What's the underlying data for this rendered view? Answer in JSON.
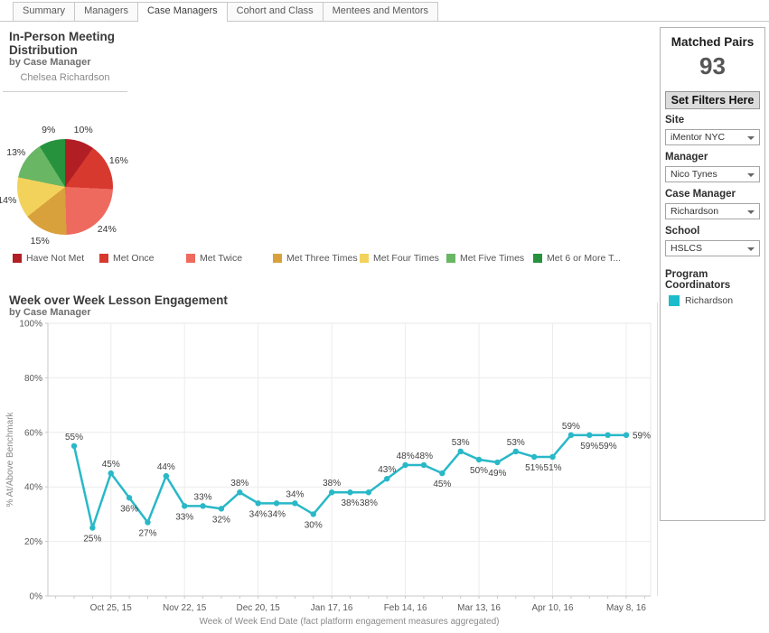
{
  "tabs": [
    {
      "label": "Summary",
      "active": false
    },
    {
      "label": "Managers",
      "active": false
    },
    {
      "label": "Case Managers",
      "active": true
    },
    {
      "label": "Cohort and Class",
      "active": false
    },
    {
      "label": "Mentees and Mentors",
      "active": false
    }
  ],
  "pie_panel": {
    "title": "In-Person Meeting Distribution",
    "subtitle": "by Case Manager",
    "column_header": "Chelsea Richardson"
  },
  "line_panel": {
    "title": "Week over Week Lesson Engagement",
    "subtitle": "by Case Manager"
  },
  "sidebar": {
    "matched_pairs_label": "Matched Pairs",
    "matched_pairs_value": "93",
    "set_filters_button": "Set Filters Here",
    "filters": [
      {
        "label": "Site",
        "value": "iMentor NYC"
      },
      {
        "label": "Manager",
        "value": "Nico Tynes"
      },
      {
        "label": "Case Manager",
        "value": "Richardson"
      },
      {
        "label": "School",
        "value": "HSLCS"
      }
    ],
    "coordinators_label": "Program Coordinators",
    "coordinators": [
      {
        "label": "Richardson",
        "color": "#1cbcca"
      }
    ]
  },
  "chart_data": [
    {
      "type": "pie",
      "title": "In-Person Meeting Distribution by Case Manager",
      "person": "Chelsea Richardson",
      "slices": [
        {
          "label": "Have Not Met",
          "value": 10,
          "color": "#b11f24"
        },
        {
          "label": "Met Once",
          "value": 16,
          "color": "#d8392f"
        },
        {
          "label": "Met Twice",
          "value": 24,
          "color": "#ee6a5f"
        },
        {
          "label": "Met Three Times",
          "value": 15,
          "color": "#d9a13c"
        },
        {
          "label": "Met Four Times",
          "value": 14,
          "color": "#f3d25c"
        },
        {
          "label": "Met Five Times",
          "value": 13,
          "color": "#69b764"
        },
        {
          "label": "Met 6 or More Times",
          "value": 9,
          "color": "#26923d"
        }
      ],
      "legend_labels": [
        "Have Not Met",
        "Met Once",
        "Met Twice",
        "Met Three Times",
        "Met Four Times",
        "Met Five Times",
        "Met 6 or More T..."
      ],
      "legend_position": "bottom"
    },
    {
      "type": "line",
      "title": "Week over Week Lesson Engagement by Case Manager",
      "ylabel": "% At/Above Benchmark",
      "xlabel": "Week of Week End Date (fact platform engagement measures aggregated)",
      "ylim": [
        0,
        100
      ],
      "ytick_step": 20,
      "yticks": [
        "0%",
        "20%",
        "40%",
        "60%",
        "80%",
        "100%"
      ],
      "grid": true,
      "line_color": "#29b8c8",
      "xticklabels": [
        "Oct 25, 15",
        "Nov 22, 15",
        "Dec 20, 15",
        "Jan 17, 16",
        "Feb 14, 16",
        "Mar 13, 16",
        "Apr 10, 16",
        "May 8, 16"
      ],
      "xtick_point_indices": [
        2,
        6,
        10,
        14,
        18,
        22,
        26,
        30
      ],
      "values": [
        55,
        25,
        45,
        36,
        27,
        44,
        33,
        33,
        32,
        38,
        34,
        34,
        34,
        30,
        38,
        38,
        38,
        43,
        48,
        48,
        45,
        53,
        50,
        49,
        53,
        51,
        51,
        59,
        59,
        59,
        59
      ],
      "value_suffix": "%",
      "label_positions": [
        "above",
        "below",
        "above",
        "below",
        "below",
        "above",
        "below",
        "above",
        "below",
        "above",
        "below",
        "below",
        "above",
        "below",
        "above",
        "below",
        "below",
        "above",
        "above",
        "above",
        "below",
        "above",
        "below",
        "below",
        "above",
        "below",
        "below",
        "above",
        "below",
        "below",
        "right"
      ]
    }
  ]
}
